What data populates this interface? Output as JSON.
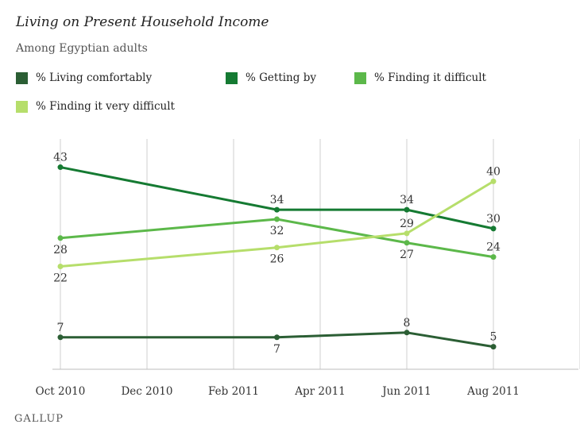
{
  "chart_data": {
    "type": "line",
    "title": "Living on Present Household Income",
    "subtitle": "Among Egyptian adults",
    "x_ticks": [
      "Oct 2010",
      "Dec 2010",
      "Feb 2011",
      "Apr 2011",
      "Jun 2011",
      "Aug 2011"
    ],
    "x_range": [
      "2010-10",
      "2011-12"
    ],
    "ylim": [
      0,
      50
    ],
    "grid": "vertical",
    "legend_position": "top",
    "series": [
      {
        "name": "% Living comfortably",
        "color": "#2b5e34",
        "points": [
          {
            "date": "2010-10",
            "value": 7,
            "label": "7"
          },
          {
            "date": "2011-03",
            "value": 7,
            "label": "7"
          },
          {
            "date": "2011-06",
            "value": 8,
            "label": "8"
          },
          {
            "date": "2011-08",
            "value": 5,
            "label": "5"
          }
        ]
      },
      {
        "name": "% Getting by",
        "color": "#157a32",
        "points": [
          {
            "date": "2010-10",
            "value": 43,
            "label": "43"
          },
          {
            "date": "2011-03",
            "value": 34,
            "label": "34"
          },
          {
            "date": "2011-06",
            "value": 34,
            "label": "34"
          },
          {
            "date": "2011-08",
            "value": 30,
            "label": "30"
          }
        ]
      },
      {
        "name": "% Finding it difficult",
        "color": "#5cb84a",
        "points": [
          {
            "date": "2010-10",
            "value": 28,
            "label": "28"
          },
          {
            "date": "2011-03",
            "value": 32,
            "label": "32"
          },
          {
            "date": "2011-06",
            "value": 27,
            "label": "27"
          },
          {
            "date": "2011-08",
            "value": 24,
            "label": "24"
          }
        ]
      },
      {
        "name": "% Finding it very difficult",
        "color": "#b6de6b",
        "points": [
          {
            "date": "2010-10",
            "value": 22,
            "label": "22"
          },
          {
            "date": "2011-03",
            "value": 26,
            "label": "26"
          },
          {
            "date": "2011-06",
            "value": 29,
            "label": "29"
          },
          {
            "date": "2011-08",
            "value": 40,
            "label": "40"
          }
        ]
      }
    ]
  },
  "footer": {
    "brand": "GALLUP"
  }
}
